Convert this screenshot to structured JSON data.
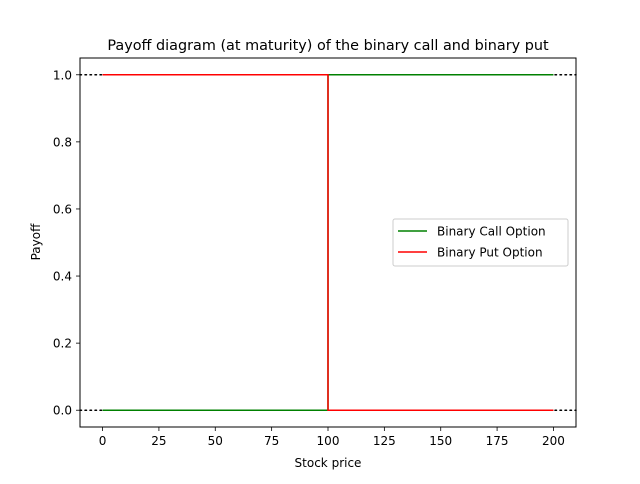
{
  "chart_data": {
    "type": "line",
    "title": "Payoff diagram (at maturity) of the binary call and binary put",
    "xlabel": "Stock price",
    "ylabel": "Payoff",
    "xlim": [
      -10,
      210
    ],
    "ylim": [
      -0.05,
      1.05
    ],
    "x_ticks": [
      0,
      25,
      50,
      75,
      100,
      125,
      150,
      175,
      200
    ],
    "x_tick_labels": [
      "0",
      "25",
      "50",
      "75",
      "100",
      "125",
      "150",
      "175",
      "200"
    ],
    "y_ticks": [
      0.0,
      0.2,
      0.4,
      0.6,
      0.8,
      1.0
    ],
    "y_tick_labels": [
      "0.0",
      "0.2",
      "0.4",
      "0.6",
      "0.8",
      "1.0"
    ],
    "grid": false,
    "legend_position": "center-right",
    "strike": 100,
    "series": [
      {
        "name": "Binary Call Option",
        "color": "#008000",
        "points": [
          [
            0,
            0
          ],
          [
            100,
            0
          ],
          [
            100,
            1
          ],
          [
            200,
            1
          ]
        ]
      },
      {
        "name": "Binary Put Option",
        "color": "#ff0000",
        "points": [
          [
            0,
            1
          ],
          [
            100,
            1
          ],
          [
            100,
            0
          ],
          [
            200,
            0
          ]
        ]
      }
    ],
    "reference_lines": [
      {
        "y": 0,
        "style": "dotted",
        "color": "#000000"
      },
      {
        "y": 1,
        "style": "dotted",
        "color": "#000000"
      }
    ]
  }
}
